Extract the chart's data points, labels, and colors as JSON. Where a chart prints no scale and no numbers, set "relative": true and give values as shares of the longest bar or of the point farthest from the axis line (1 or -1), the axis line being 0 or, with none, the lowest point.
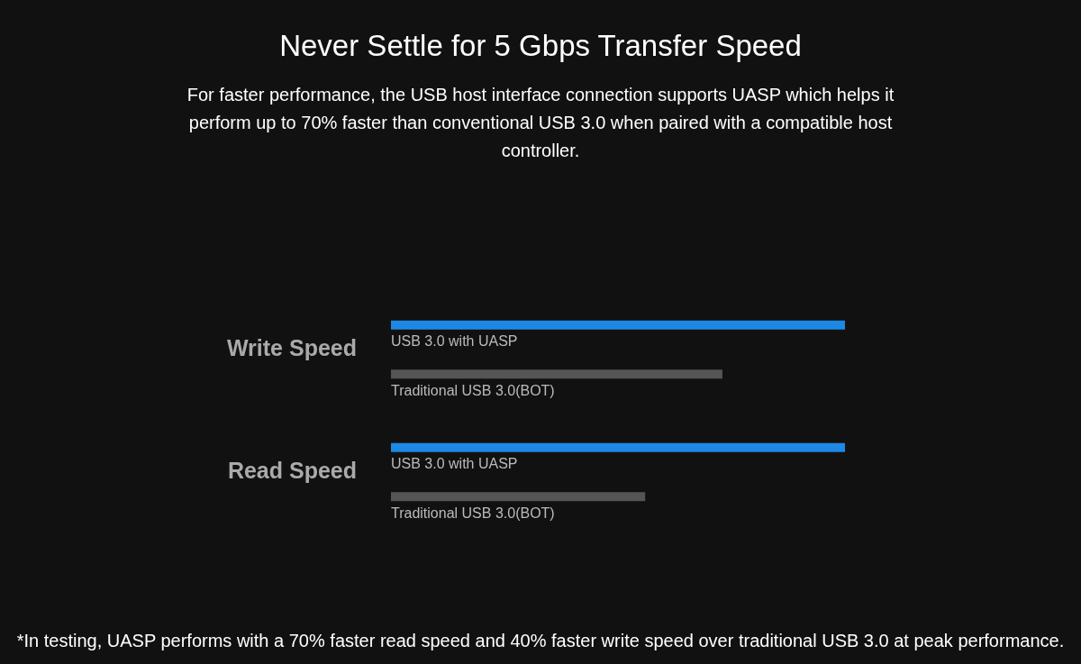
{
  "chart_data": {
    "type": "bar",
    "orientation": "horizontal",
    "relative": true,
    "title": "Never Settle for 5 Gbps Transfer Speed",
    "subtitle": "For faster performance, the USB host interface connection supports UASP which helps it perform up to 70% faster than conventional USB 3.0 when paired with a compatible host controller.",
    "categories": [
      "Write Speed",
      "Read Speed"
    ],
    "series": [
      {
        "name": "USB 3.0 with UASP",
        "color": "#1e88e5",
        "values": [
          1,
          1
        ]
      },
      {
        "name": "Traditional USB 3.0(BOT)",
        "color": "#555555",
        "values": [
          0.73,
          0.56
        ]
      }
    ],
    "annotations": [
      "*In testing, UASP performs with a 70% faster read speed and 40% faster write speed over traditional USB 3.0 at peak performance."
    ]
  }
}
